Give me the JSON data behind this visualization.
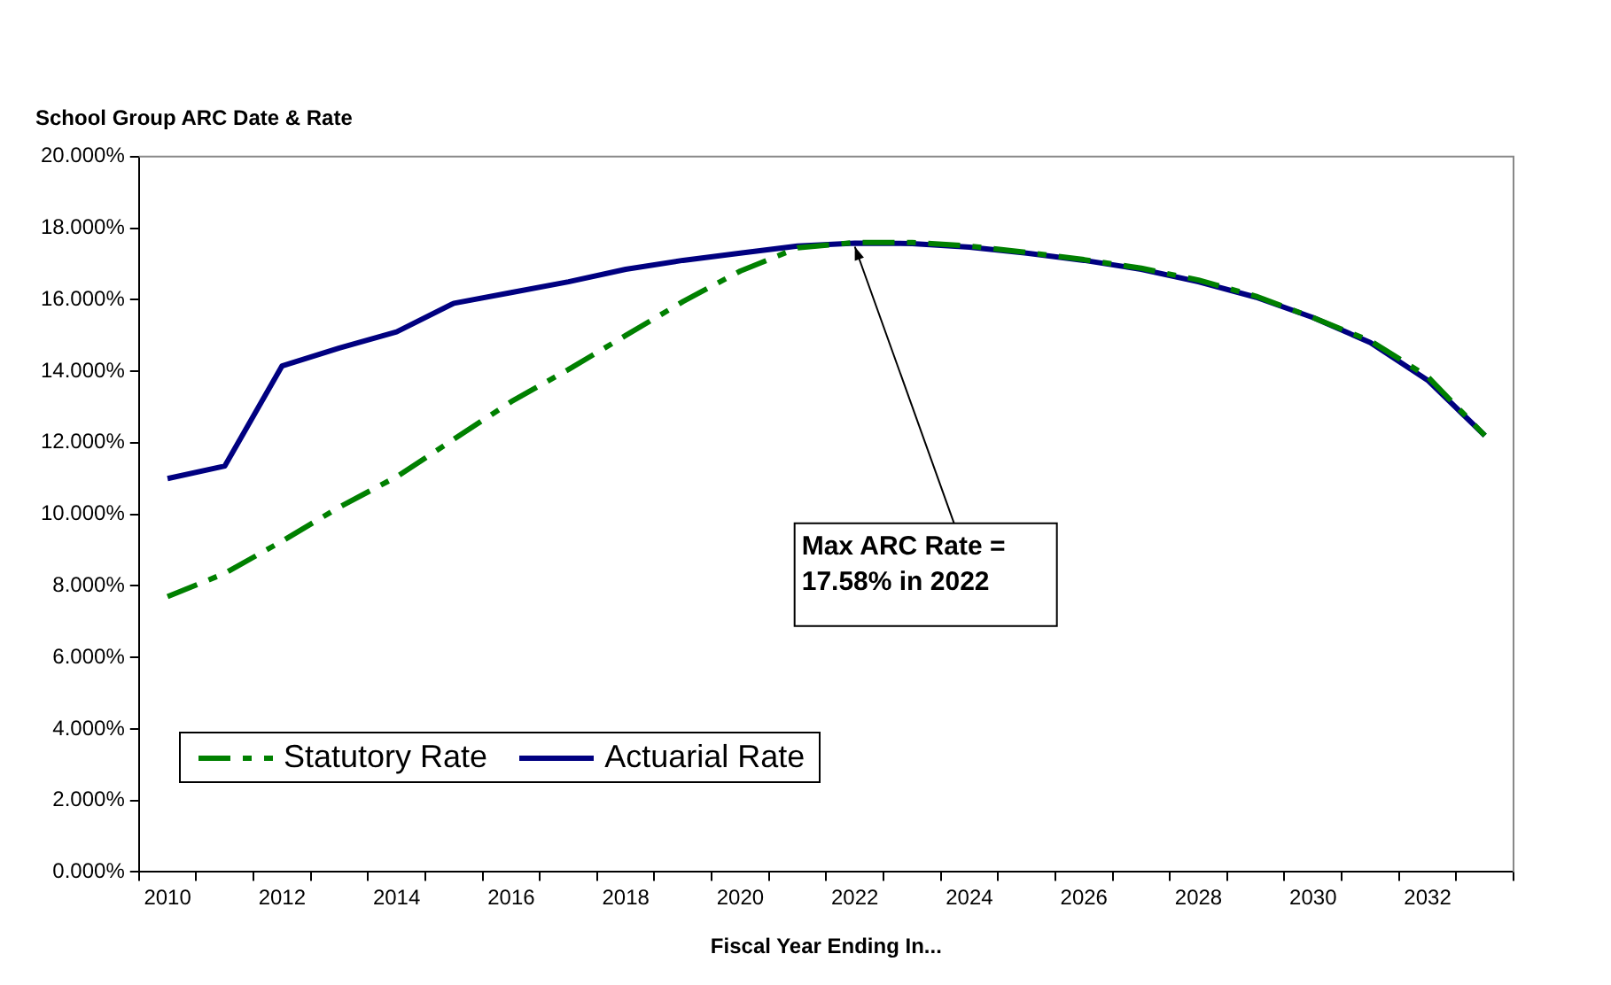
{
  "chart_data": {
    "type": "line",
    "title": "School Group ARC Date & Rate",
    "xlabel": "Fiscal Year Ending In...",
    "categories": [
      "2010",
      null,
      "2012",
      null,
      "2014",
      null,
      "2016",
      null,
      "2018",
      null,
      "2020",
      null,
      "2022",
      null,
      "2024",
      null,
      "2026",
      null,
      "2028",
      null,
      "2030",
      null,
      "2032",
      null
    ],
    "series": [
      {
        "name": "Statutory Rate",
        "color": "#008000",
        "line_style": "dashed",
        "values": [
          7.7,
          8.35,
          9.25,
          10.2,
          11.05,
          12.1,
          13.15,
          14.05,
          15.0,
          15.95,
          16.8,
          17.45,
          17.6,
          17.6,
          17.5,
          17.32,
          17.12,
          16.88,
          16.55,
          16.1,
          15.5,
          14.85,
          13.85,
          12.2
        ]
      },
      {
        "name": "Actuarial Rate",
        "color": "#000080",
        "line_style": "solid",
        "values": [
          11.0,
          11.35,
          14.15,
          14.65,
          15.1,
          15.9,
          16.2,
          16.5,
          16.85,
          17.1,
          17.3,
          17.5,
          17.58,
          17.57,
          17.47,
          17.3,
          17.1,
          16.85,
          16.5,
          16.07,
          15.5,
          14.8,
          13.75,
          12.2
        ]
      }
    ],
    "ylim": [
      0,
      20
    ],
    "yticks": [
      {
        "value": 0,
        "label": "0.000%"
      },
      {
        "value": 2,
        "label": "2.000%"
      },
      {
        "value": 4,
        "label": "4.000%"
      },
      {
        "value": 6,
        "label": "6.000%"
      },
      {
        "value": 8,
        "label": "8.000%"
      },
      {
        "value": 10,
        "label": "10.000%"
      },
      {
        "value": 12,
        "label": "12.000%"
      },
      {
        "value": 14,
        "label": "14.000%"
      },
      {
        "value": 16,
        "label": "16.000%"
      },
      {
        "value": 18,
        "label": "18.000%"
      },
      {
        "value": 20,
        "label": "20.000%"
      }
    ],
    "grid": false,
    "legend": "bottom left",
    "marker": "none",
    "annotations": [
      {
        "text": "Max ARC Rate = 17.58% in 2022",
        "x": "2022",
        "y": 17.58
      }
    ]
  }
}
